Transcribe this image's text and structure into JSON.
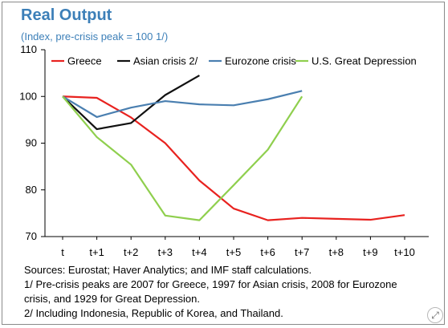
{
  "chart_data": {
    "type": "line",
    "title": "Real Output",
    "subtitle": "(Index, pre-crisis peak = 100 1/)",
    "categories": [
      "t",
      "t+1",
      "t+2",
      "t+3",
      "t+4",
      "t+5",
      "t+6",
      "t+7",
      "t+8",
      "t+9",
      "t+10"
    ],
    "ylim": [
      70,
      110
    ],
    "yticks": [
      70,
      80,
      90,
      100,
      110
    ],
    "grid": false,
    "legend_position": "top",
    "series": [
      {
        "name": "Greece",
        "color": "#e8221f",
        "values": [
          100,
          99.7,
          95.5,
          90,
          82,
          76,
          73.5,
          74,
          73.8,
          73.6,
          74.6
        ]
      },
      {
        "name": "Asian crisis 2/",
        "color": "#111111",
        "values": [
          100,
          93,
          94.3,
          100.3,
          104.5,
          null,
          null,
          null,
          null,
          null,
          null
        ]
      },
      {
        "name": "Eurozone crisis",
        "color": "#4a7fb0",
        "values": [
          100,
          95.6,
          97.6,
          99,
          98.3,
          98.1,
          99.4,
          101.2,
          null,
          null,
          null
        ]
      },
      {
        "name": "U.S. Great Depression",
        "color": "#8fcf4e",
        "values": [
          100,
          91.3,
          85.4,
          74.5,
          73.5,
          81,
          88.6,
          100,
          null,
          null,
          null
        ]
      }
    ]
  },
  "notes": {
    "sources": "Sources: Eurostat; Haver Analytics; and IMF staff calculations.",
    "note1_line1": "1/ Pre-crisis peaks are 2007 for Greece, 1997 for Asian crisis, 2008 for Eurozone",
    "note1_line2": "crisis, and 1929 for Great Depression.",
    "note2": "2/ Including Indonesia, Republic of Korea, and Thailand."
  },
  "icons": {
    "expand": "expand-icon"
  }
}
